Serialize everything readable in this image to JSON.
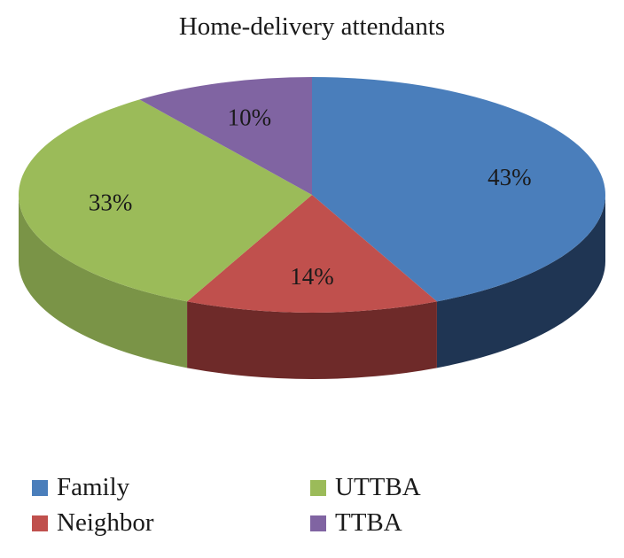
{
  "chart_data": {
    "type": "pie",
    "title": "Home-delivery attendants",
    "categories": [
      "Family",
      "Neighbor",
      "UTTBA",
      "TTBA"
    ],
    "values": [
      43,
      14,
      33,
      10
    ],
    "labels": [
      "43%",
      "14%",
      "33%",
      "10%"
    ],
    "colors": [
      "#4a7ebb",
      "#c0504d",
      "#9bbb59",
      "#8064a2"
    ],
    "side_colors": [
      "#1f3553",
      "#6e2a29",
      "#7a9447",
      "#5e4a7a"
    ],
    "legend_position": "bottom",
    "style": "3d"
  }
}
